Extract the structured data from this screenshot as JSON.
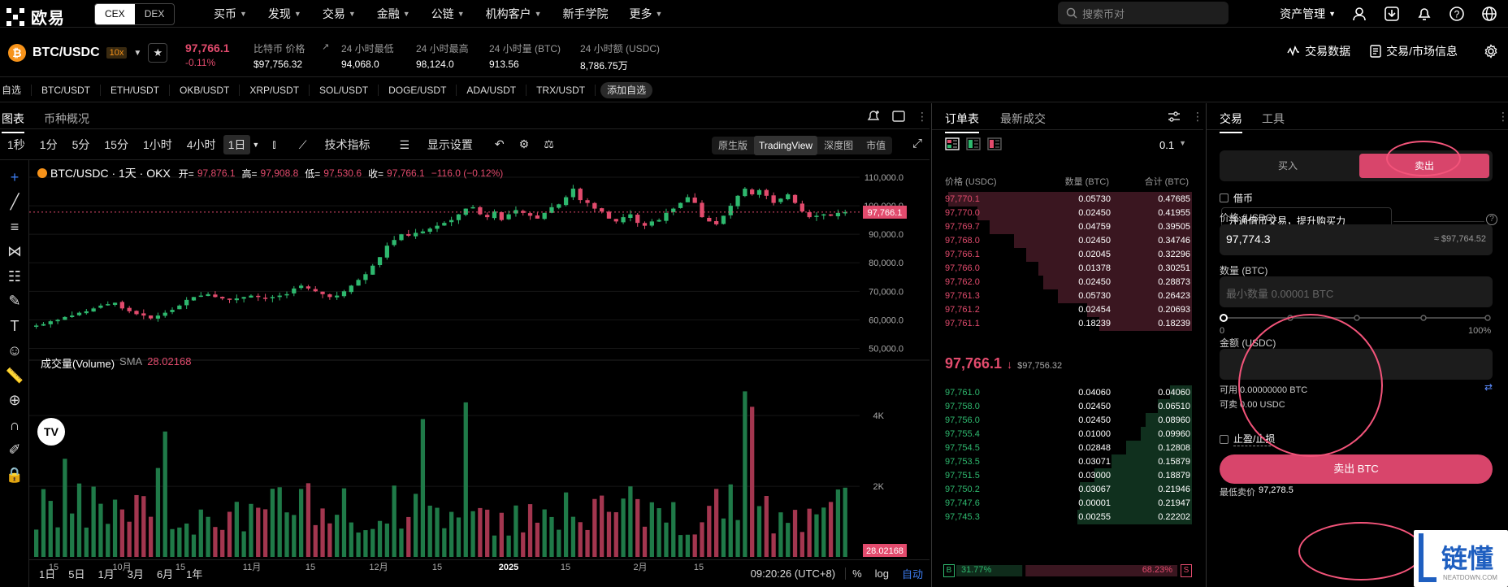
{
  "header": {
    "logo_text": "欧易",
    "segments": [
      "CEX",
      "DEX"
    ],
    "nav": [
      {
        "label": "买币",
        "caret": true
      },
      {
        "label": "发现",
        "caret": true
      },
      {
        "label": "交易",
        "caret": true
      },
      {
        "label": "金融",
        "caret": true
      },
      {
        "label": "公链",
        "caret": true
      },
      {
        "label": "机构客户",
        "caret": true
      },
      {
        "label": "新手学院",
        "caret": false
      },
      {
        "label": "更多",
        "caret": true
      }
    ],
    "search_placeholder": "搜索币对",
    "asset_mgmt": "资产管理"
  },
  "ticker": {
    "pair": "BTC/USDC",
    "leverage": "10x",
    "last_price": "97,766.1",
    "change_pct": "-0.11%",
    "stats": [
      {
        "label": "比特币 价格",
        "value": "$97,756.32"
      },
      {
        "label": "24 小时最低",
        "value": "94,068.0"
      },
      {
        "label": "24 小时最高",
        "value": "98,124.0"
      },
      {
        "label": "24 小时量 (BTC)",
        "value": "913.56"
      },
      {
        "label": "24 小时额 (USDC)",
        "value": "8,786.75万"
      }
    ],
    "trading_data": "交易数据",
    "market_info": "交易/市场信息"
  },
  "favorites": [
    "自选",
    "BTC/USDT",
    "ETH/USDT",
    "OKB/USDT",
    "XRP/USDT",
    "SOL/USDT",
    "DOGE/USDT",
    "ADA/USDT",
    "TRX/USDT",
    "添加自选"
  ],
  "chart_panel": {
    "tabs": [
      "图表",
      "币种概况"
    ],
    "timeframes": [
      "1秒",
      "1分",
      "5分",
      "15分",
      "1小时",
      "4小时",
      "1日"
    ],
    "active_timeframe": "1日",
    "indicators": "技术指标",
    "display_settings": "显示设置",
    "views": [
      "原生版",
      "TradingView",
      "深度图",
      "市值"
    ],
    "active_view": "TradingView",
    "legend_title": "BTC/USDC · 1天 · OKX",
    "ohlc": {
      "o_label": "开=",
      "o": "97,876.1",
      "h_label": "高=",
      "h": "97,908.8",
      "l_label": "低=",
      "l": "97,530.6",
      "c_label": "收=",
      "c": "97,766.1",
      "chg": "−116.0 (−0.12%)"
    },
    "volume_label": "成交量(Volume)",
    "sma_label": "SMA",
    "sma_value": "28.02168",
    "last_price_tag": "97,766.1",
    "volume_tag": "28.02168",
    "ranges": [
      "1日",
      "5日",
      "1月",
      "3月",
      "6月",
      "1年"
    ],
    "clock": "09:20:26 (UTC+8)",
    "pct": "%",
    "log": "log",
    "auto": "自动"
  },
  "chart_data": {
    "type": "candlestick",
    "title": "BTC/USDC · 1天 · OKX",
    "price_axis_ticks": [
      110000,
      100000,
      90000,
      80000,
      70000,
      60000,
      50000
    ],
    "price_axis_labels": [
      "110,000.0",
      "100,000.0",
      "90,000.0",
      "80,000.0",
      "70,000.0",
      "60,000.0",
      "50,000.0"
    ],
    "ylim": [
      47000,
      112000
    ],
    "volume_axis_labels": [
      "4K",
      "2K"
    ],
    "volume_ylim": [
      0,
      5200
    ],
    "x_tick_labels": [
      "15",
      "10月",
      "15",
      "11月",
      "15",
      "12月",
      "15",
      "2025",
      "15",
      "2月",
      "15"
    ],
    "price_path": [
      58000,
      58500,
      59500,
      60000,
      61000,
      61500,
      62500,
      63000,
      64000,
      65000,
      65500,
      66000,
      64000,
      63000,
      62000,
      61500,
      60500,
      61500,
      62500,
      63500,
      65000,
      67000,
      68000,
      68500,
      69000,
      68000,
      67500,
      67000,
      67500,
      68000,
      68500,
      68000,
      67500,
      68000,
      68500,
      69000,
      71000,
      72000,
      71000,
      70000,
      69000,
      68000,
      68500,
      70000,
      72000,
      74000,
      76000,
      79000,
      82000,
      86000,
      88000,
      90000,
      89500,
      90500,
      91000,
      92000,
      93000,
      94000,
      95000,
      97000,
      99000,
      99500,
      97000,
      96000,
      98000,
      95000,
      97000,
      98500,
      97500,
      96500,
      95500,
      97500,
      99500,
      100500,
      103000,
      106000,
      102000,
      101000,
      99000,
      98000,
      95500,
      94500,
      96000,
      97000,
      94000,
      93000,
      94500,
      95000,
      97500,
      99000,
      101000,
      103000,
      101000,
      96000,
      94500,
      93500,
      96500,
      100000,
      103500,
      106000,
      104000,
      105500,
      103500,
      101000,
      102500,
      104000,
      101000,
      98000,
      96000,
      96500,
      97000,
      96500,
      97500,
      97766
    ]
  },
  "order_book": {
    "tabs": [
      "订单表",
      "最新成交"
    ],
    "precision": "0.1",
    "headers": [
      "价格 (USDC)",
      "数量 (BTC)",
      "合计 (BTC)"
    ],
    "asks": [
      {
        "p": "97,770.1",
        "q": "0.05730",
        "t": "0.47685",
        "d": 1.0
      },
      {
        "p": "97,770.0",
        "q": "0.02450",
        "t": "0.41955",
        "d": 0.88
      },
      {
        "p": "97,769.7",
        "q": "0.04759",
        "t": "0.39505",
        "d": 0.83
      },
      {
        "p": "97,768.0",
        "q": "0.02450",
        "t": "0.34746",
        "d": 0.73
      },
      {
        "p": "97,766.1",
        "q": "0.02045",
        "t": "0.32296",
        "d": 0.68
      },
      {
        "p": "97,766.0",
        "q": "0.01378",
        "t": "0.30251",
        "d": 0.63
      },
      {
        "p": "97,762.0",
        "q": "0.02450",
        "t": "0.28873",
        "d": 0.61
      },
      {
        "p": "97,761.3",
        "q": "0.05730",
        "t": "0.26423",
        "d": 0.55
      },
      {
        "p": "97,761.2",
        "q": "0.02454",
        "t": "0.20693",
        "d": 0.43
      },
      {
        "p": "97,761.1",
        "q": "0.18239",
        "t": "0.18239",
        "d": 0.38
      }
    ],
    "mid_price": "97,766.1",
    "mid_ref": "$97,756.32",
    "bids": [
      {
        "p": "97,761.0",
        "q": "0.04060",
        "t": "0.04060",
        "d": 0.09
      },
      {
        "p": "97,758.0",
        "q": "0.02450",
        "t": "0.06510",
        "d": 0.14
      },
      {
        "p": "97,756.0",
        "q": "0.02450",
        "t": "0.08960",
        "d": 0.19
      },
      {
        "p": "97,755.4",
        "q": "0.01000",
        "t": "0.09960",
        "d": 0.21
      },
      {
        "p": "97,754.5",
        "q": "0.02848",
        "t": "0.12808",
        "d": 0.27
      },
      {
        "p": "97,753.5",
        "q": "0.03071",
        "t": "0.15879",
        "d": 0.33
      },
      {
        "p": "97,751.5",
        "q": "0.03000",
        "t": "0.18879",
        "d": 0.4
      },
      {
        "p": "97,750.2",
        "q": "0.03067",
        "t": "0.21946",
        "d": 0.46
      },
      {
        "p": "97,747.6",
        "q": "0.00001",
        "t": "0.21947",
        "d": 0.46
      },
      {
        "p": "97,745.3",
        "q": "0.00255",
        "t": "0.22202",
        "d": 0.47
      }
    ],
    "buy_ratio": "31.77%",
    "sell_ratio": "68.23%",
    "b": "B",
    "s": "S"
  },
  "trade": {
    "tabs": [
      "交易",
      "工具"
    ],
    "buy": "买入",
    "sell": "卖出",
    "margin": "借币",
    "tooltip": "开通借币交易，提升购买力",
    "price_label": "价格 (USDC)",
    "price_value": "97,774.3",
    "price_ref": "≈ $97,764.52",
    "qty_label": "数量 (BTC)",
    "qty_placeholder": "最小数量 0.00001 BTC",
    "slider_min": "0",
    "slider_max": "100%",
    "amount_label": "金额 (USDC)",
    "available": "可用 0.00000000 BTC",
    "sellable": "可卖 0.00 USDC",
    "tpsl": "止盈/止损",
    "sell_button": "卖出 BTC",
    "min_sell": "最低卖价",
    "min_sell_value": "97,278.5"
  },
  "watermark": {
    "text": "链懂",
    "sub": "NEATDOWN.COM"
  },
  "colors": {
    "up": "#2eb86e",
    "down": "#e24b6d",
    "accent": "#f3547a"
  }
}
